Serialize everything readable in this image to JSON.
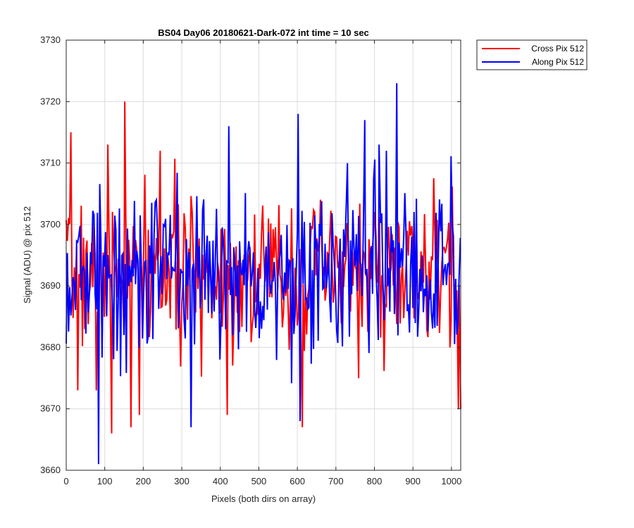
{
  "chart_data": {
    "type": "line",
    "title": "BS04 Day06 20180621-Dark-072 int time = 10 sec",
    "xlabel": "Pixels (both dirs on array)",
    "ylabel": "Signal (ADU) @ pix 512",
    "xlim": [
      0,
      1024
    ],
    "ylim": [
      3660,
      3730
    ],
    "xticks": [
      0,
      100,
      200,
      300,
      400,
      500,
      600,
      700,
      800,
      900,
      1000
    ],
    "yticks": [
      3660,
      3670,
      3680,
      3690,
      3700,
      3710,
      3720,
      3730
    ],
    "grid": true,
    "legend_position": "outside top-right",
    "baseline": 3692,
    "series": [
      {
        "name": "Cross Pix 512",
        "color": "#ff0000",
        "noise_std": 6,
        "seed": 7,
        "x_step": 3,
        "features": [
          {
            "x": 12,
            "y": 3715
          },
          {
            "x": 30,
            "y": 3673
          },
          {
            "x": 78,
            "y": 3673
          },
          {
            "x": 108,
            "y": 3713
          },
          {
            "x": 118,
            "y": 3666
          },
          {
            "x": 152,
            "y": 3720
          },
          {
            "x": 168,
            "y": 3667
          },
          {
            "x": 190,
            "y": 3669
          },
          {
            "x": 244,
            "y": 3712
          },
          {
            "x": 418,
            "y": 3669
          },
          {
            "x": 613,
            "y": 3667
          },
          {
            "x": 1018,
            "y": 3670
          },
          {
            "x": 1024,
            "y": 3670
          }
        ]
      },
      {
        "name": "Along Pix 512",
        "color": "#0000ff",
        "noise_std": 7,
        "seed": 13,
        "x_step": 3,
        "features": [
          {
            "x": 84,
            "y": 3661
          },
          {
            "x": 324,
            "y": 3667
          },
          {
            "x": 422,
            "y": 3716
          },
          {
            "x": 602,
            "y": 3718
          },
          {
            "x": 607,
            "y": 3668
          },
          {
            "x": 775,
            "y": 3717
          },
          {
            "x": 858,
            "y": 3723
          },
          {
            "x": 812,
            "y": 3713
          },
          {
            "x": 730,
            "y": 3710
          }
        ]
      }
    ]
  }
}
